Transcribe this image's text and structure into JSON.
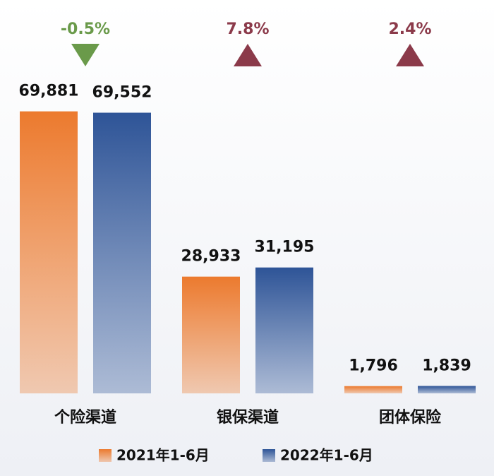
{
  "chart_data": {
    "type": "bar",
    "categories": [
      "个险渠道",
      "银保渠道",
      "团体保险"
    ],
    "series": [
      {
        "name": "2021年1-6月",
        "color": "#ec7a2e",
        "values": [
          69881,
          28933,
          1796
        ],
        "value_labels": [
          "69,881",
          "28,933",
          "1,796"
        ]
      },
      {
        "name": "2022年1-6月",
        "color": "#2e5497",
        "values": [
          69552,
          31195,
          1839
        ],
        "value_labels": [
          "69,552",
          "31,195",
          "1,839"
        ]
      }
    ],
    "annotations": [
      {
        "text": "-0.5%",
        "value": -0.5,
        "color": "#6a9a4a"
      },
      {
        "text": "7.8%",
        "value": 7.8,
        "color": "#8b3a4a"
      },
      {
        "text": "2.4%",
        "value": 2.4,
        "color": "#8b3a4a"
      }
    ],
    "ylim": [
      0,
      70000
    ]
  }
}
